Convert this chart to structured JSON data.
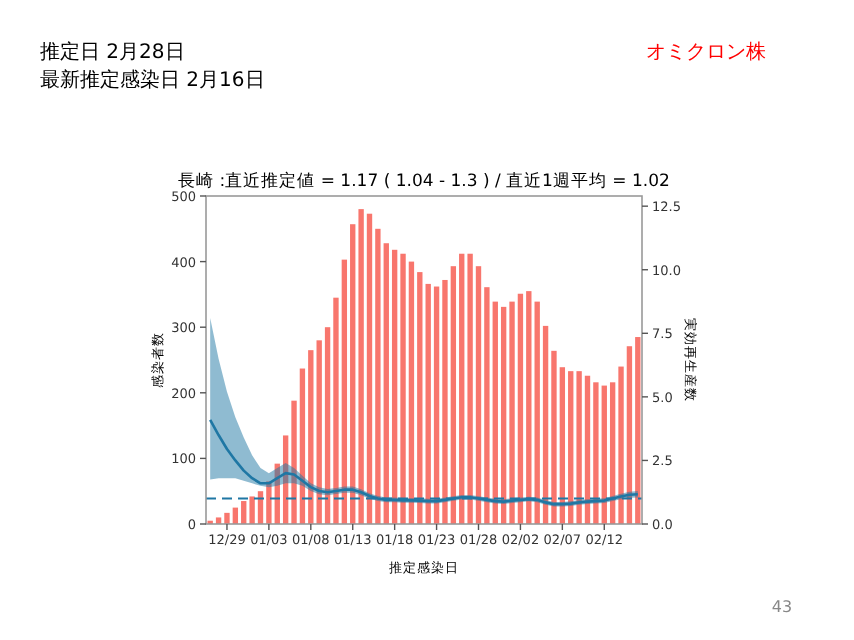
{
  "chart_data": {
    "type": "bar",
    "title": "長崎 :直近推定値 = 1.17 ( 1.04 - 1.3 ) / 直近1週平均 = 1.02",
    "xlabel": "推定感染日",
    "ylabel": "感染者数",
    "y2label": "実効再生産数",
    "annotations": [
      "推定日  2月28日",
      "最新推定感染日  2月16日",
      "オミクロン株",
      "43"
    ],
    "categories": [
      null,
      null,
      "12/29",
      null,
      null,
      null,
      null,
      "01/03",
      null,
      null,
      null,
      null,
      "01/08",
      null,
      null,
      null,
      null,
      "01/13",
      null,
      null,
      null,
      null,
      "01/18",
      null,
      null,
      null,
      null,
      "01/23",
      null,
      null,
      null,
      null,
      "01/28",
      null,
      null,
      null,
      null,
      "02/02",
      null,
      null,
      null,
      null,
      "02/07",
      null,
      null,
      null,
      null,
      "02/12",
      null,
      null,
      null,
      null
    ],
    "series": [
      {
        "color": "#f8766d",
        "values": [
          5,
          10,
          17,
          25,
          35,
          42,
          50,
          65,
          92,
          135,
          188,
          237,
          265,
          280,
          300,
          345,
          403,
          457,
          480,
          473,
          450,
          428,
          418,
          412,
          400,
          384,
          366,
          362,
          372,
          393,
          412,
          412,
          393,
          361,
          339,
          331,
          339,
          351,
          355,
          339,
          302,
          264,
          239,
          233,
          233,
          226,
          216,
          211,
          216,
          240,
          271,
          285
        ]
      },
      {
        "type": "line",
        "axis": "y2",
        "color": "#1f77a4",
        "values": [
          4.1,
          3.5,
          2.95,
          2.5,
          2.1,
          1.8,
          1.6,
          1.6,
          1.8,
          2.0,
          1.95,
          1.7,
          1.45,
          1.3,
          1.25,
          1.3,
          1.35,
          1.35,
          1.25,
          1.1,
          1.0,
          0.95,
          0.95,
          0.93,
          0.93,
          0.92,
          0.9,
          0.9,
          0.95,
          1.0,
          1.05,
          1.05,
          1.0,
          0.95,
          0.9,
          0.88,
          0.92,
          0.95,
          0.98,
          0.95,
          0.85,
          0.78,
          0.78,
          0.8,
          0.85,
          0.88,
          0.9,
          0.92,
          1.0,
          1.08,
          1.15,
          1.17
        ],
        "upper": [
          8.1,
          6.5,
          5.2,
          4.2,
          3.4,
          2.7,
          2.2,
          2.0,
          2.2,
          2.4,
          2.2,
          1.9,
          1.6,
          1.45,
          1.38,
          1.42,
          1.47,
          1.47,
          1.37,
          1.21,
          1.1,
          1.04,
          1.04,
          1.02,
          1.02,
          1.01,
          0.99,
          0.99,
          1.04,
          1.09,
          1.14,
          1.14,
          1.09,
          1.04,
          0.99,
          0.97,
          1.01,
          1.04,
          1.07,
          1.04,
          0.94,
          0.87,
          0.87,
          0.89,
          0.94,
          0.97,
          0.99,
          1.01,
          1.1,
          1.19,
          1.27,
          1.3
        ],
        "lower": [
          1.75,
          1.8,
          1.8,
          1.8,
          1.7,
          1.6,
          1.5,
          1.45,
          1.5,
          1.6,
          1.6,
          1.5,
          1.3,
          1.17,
          1.13,
          1.18,
          1.23,
          1.23,
          1.13,
          0.99,
          0.9,
          0.86,
          0.86,
          0.84,
          0.84,
          0.83,
          0.81,
          0.81,
          0.86,
          0.91,
          0.96,
          0.96,
          0.91,
          0.86,
          0.81,
          0.79,
          0.83,
          0.86,
          0.89,
          0.86,
          0.76,
          0.69,
          0.69,
          0.71,
          0.76,
          0.79,
          0.81,
          0.83,
          0.9,
          0.97,
          1.03,
          1.04
        ]
      }
    ],
    "ylim": [
      0,
      500
    ],
    "yticks": [
      0,
      100,
      200,
      300,
      400,
      500
    ],
    "y2lim": [
      0,
      12.9
    ],
    "y2ticks": [
      {
        "value": 0,
        "label": "0.0"
      },
      2.5,
      {
        "value": 5,
        "label": "5.0"
      },
      7.5,
      {
        "value": 10,
        "label": "10.0"
      },
      12.5
    ],
    "ref_lines": [
      {
        "axis": "y2",
        "value": 1,
        "color": "#1f77a4",
        "line_style": "dashed"
      }
    ],
    "grid": false
  }
}
